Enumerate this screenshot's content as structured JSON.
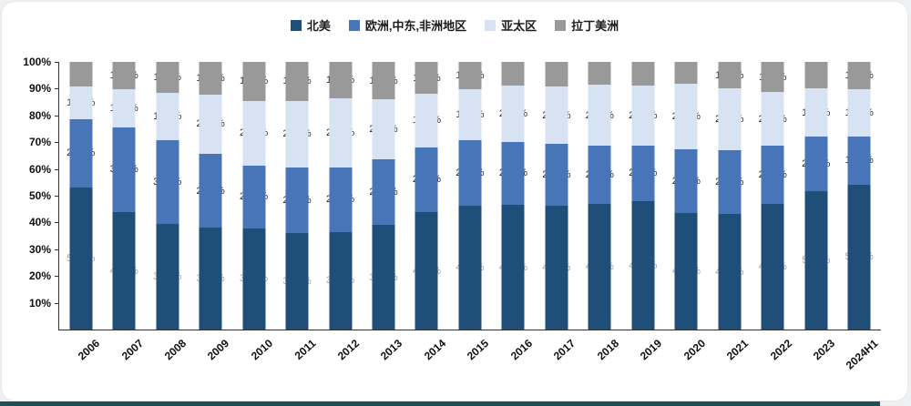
{
  "accent_colors": {
    "north_america": "#1f4e79",
    "emea": "#4775b8",
    "apac": "#d7e3f2",
    "latam": "#999999",
    "bottom_strip": "#1d4f5a"
  },
  "chart_data": {
    "type": "bar",
    "stacked": true,
    "title": "",
    "xlabel": "",
    "ylabel": "",
    "ylim": [
      0,
      100
    ],
    "grid": false,
    "legend_position": "top-center",
    "y_ticks": [
      100,
      90,
      80,
      70,
      60,
      50,
      40,
      30,
      20,
      10
    ],
    "categories": [
      "2006",
      "2007",
      "2008",
      "2009",
      "2010",
      "2011",
      "2012",
      "2013",
      "2014",
      "2015",
      "2016",
      "2017",
      "2018",
      "2019",
      "2020",
      "2021",
      "2022",
      "2023",
      "2024H1"
    ],
    "series": [
      {
        "name": "北美",
        "color": "#1f4e79",
        "label_color": "#a0a0a0",
        "values": [
          53.0,
          43.8,
          39.4,
          38.1,
          37.8,
          36.1,
          36.6,
          39.1,
          43.8,
          46.4,
          46.6,
          46.4,
          46.8,
          47.9,
          43.6,
          43.2,
          47.1,
          51.6,
          54.2
        ]
      },
      {
        "name": "欧洲,中东,非洲地区",
        "color": "#4775b8",
        "label_color": "#262626",
        "values": [
          25.7,
          31.8,
          31.4,
          27.5,
          23.5,
          24.5,
          24.0,
          24.5,
          24.4,
          24.5,
          23.5,
          22.9,
          21.8,
          20.9,
          23.6,
          23.8,
          21.6,
          20.4,
          18.0
        ]
      },
      {
        "name": "亚太区",
        "color": "#d7e3f2",
        "label_color": "#262626",
        "values": [
          12.1,
          14.2,
          17.5,
          22.3,
          24.2,
          24.9,
          25.9,
          22.4,
          19.8,
          18.9,
          20.9,
          21.5,
          22.8,
          22.5,
          24.5,
          23.0,
          20.0,
          18.1,
          17.7
        ]
      },
      {
        "name": "拉丁美洲",
        "color": "#999999",
        "label_color": "#262626",
        "values": [
          9.3,
          10.1,
          11.7,
          12.0,
          14.5,
          14.4,
          13.6,
          14.0,
          11.9,
          10.2,
          9.0,
          9.2,
          8.6,
          8.8,
          8.2,
          10.0,
          11.3,
          9.9,
          10.1
        ]
      }
    ]
  }
}
